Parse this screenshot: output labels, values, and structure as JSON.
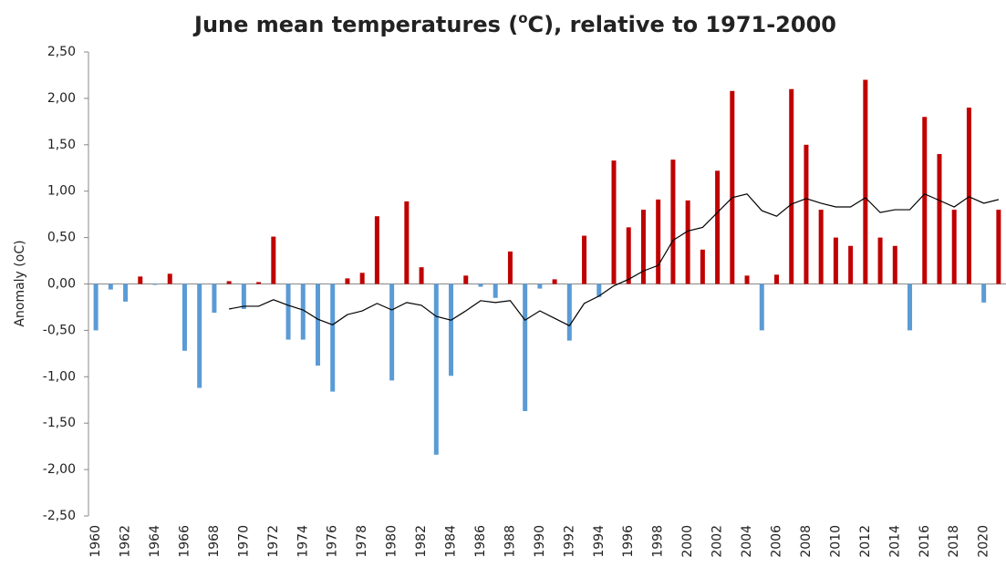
{
  "chart_data": {
    "type": "bar",
    "title": [
      "June mean temperatures (",
      "o",
      "C), relative to 1971-2000"
    ],
    "y_label": "Anomaly (oC)",
    "categories": [
      "1960",
      null,
      "1962",
      null,
      "1964",
      null,
      "1966",
      null,
      "1968",
      null,
      "1970",
      null,
      "1972",
      null,
      "1974",
      null,
      "1976",
      null,
      "1978",
      null,
      "1980",
      null,
      "1982",
      null,
      "1984",
      null,
      "1986",
      null,
      "1988",
      null,
      "1990",
      null,
      "1992",
      null,
      "1994",
      null,
      "1996",
      null,
      "1998",
      null,
      "2000",
      null,
      "2002",
      null,
      "2004",
      null,
      "2006",
      null,
      "2008",
      null,
      "2010",
      null,
      "2012",
      null,
      "2014",
      null,
      "2016",
      null,
      "2018",
      null,
      "2020",
      null
    ],
    "values": [
      -0.5,
      -0.06,
      -0.19,
      0.08,
      -0.01,
      0.11,
      -0.72,
      -1.12,
      -0.31,
      0.03,
      -0.27,
      0.02,
      0.51,
      -0.6,
      -0.6,
      -0.88,
      -1.16,
      0.06,
      0.12,
      0.73,
      -1.04,
      0.89,
      0.18,
      -1.84,
      -0.99,
      0.09,
      -0.03,
      -0.15,
      0.35,
      -1.37,
      -0.05,
      0.05,
      -0.61,
      0.52,
      -0.14,
      1.33,
      0.61,
      0.8,
      0.91,
      1.34,
      0.9,
      0.37,
      1.22,
      2.08,
      0.09,
      -0.5,
      0.1,
      2.1,
      1.5,
      0.8,
      0.5,
      0.41,
      2.2,
      0.5,
      0.41,
      -0.5,
      1.8,
      1.4,
      0.8,
      1.9,
      -0.2,
      0.8
    ],
    "color_positive": "#c00000",
    "color_negative": "#5b9bd5",
    "line_values": [
      null,
      null,
      null,
      null,
      null,
      null,
      null,
      null,
      null,
      -0.27,
      -0.24,
      -0.24,
      -0.17,
      -0.23,
      -0.28,
      -0.38,
      -0.44,
      -0.33,
      -0.29,
      -0.21,
      -0.28,
      -0.2,
      -0.23,
      -0.35,
      -0.39,
      -0.29,
      -0.18,
      -0.2,
      -0.18,
      -0.39,
      -0.29,
      -0.37,
      -0.45,
      -0.21,
      -0.13,
      -0.02,
      0.05,
      0.14,
      0.2,
      0.47,
      0.57,
      0.61,
      0.77,
      0.93,
      0.97,
      0.79,
      0.73,
      0.86,
      0.92,
      0.87,
      0.83,
      0.83,
      0.93,
      0.77,
      0.8,
      0.8,
      0.97,
      0.9,
      0.83,
      0.94,
      0.87,
      0.91
    ],
    "line_color": "#000000",
    "ylim": [
      -2.5,
      2.5
    ],
    "yticks": [
      {
        "value": -2.5,
        "label": "-2,50"
      },
      {
        "value": -2.0,
        "label": "-2,00"
      },
      {
        "value": -1.5,
        "label": "-1,50"
      },
      {
        "value": -1.0,
        "label": "-1,00"
      },
      {
        "value": -0.5,
        "label": "-0,50"
      },
      {
        "value": 0,
        "label": "0,00"
      },
      {
        "value": 0.5,
        "label": "0,50"
      },
      {
        "value": 1.0,
        "label": "1,00"
      },
      {
        "value": 1.5,
        "label": "1,50"
      },
      {
        "value": 2.0,
        "label": "2,00"
      },
      {
        "value": 2.5,
        "label": "2,50"
      }
    ],
    "grid": false
  }
}
